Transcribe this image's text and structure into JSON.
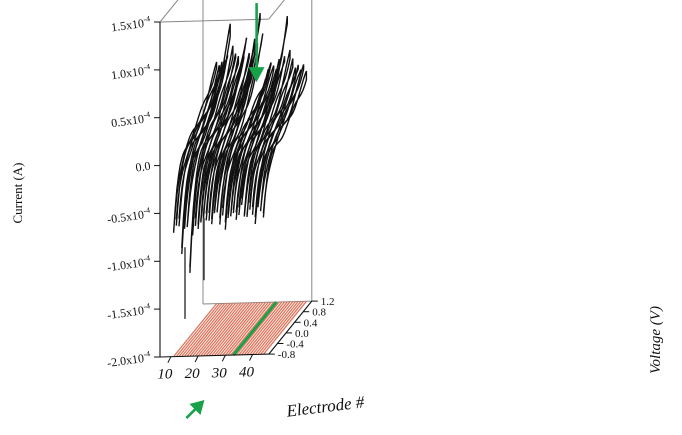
{
  "chart_data": {
    "type": "line",
    "title": "",
    "projection": "3d-waterfall",
    "ylabel": "Current (A)",
    "xlabel": "Electrode #",
    "zlabel": "Voltage (V)",
    "current_ticks": [
      "1.5x10",
      "1.0x10",
      "0.5x10",
      "0.0",
      "-0.5x10",
      "-1.0x10",
      "-1.5x10",
      "-2.0x10"
    ],
    "current_tick_exp": "-4",
    "current_values": [
      0.00015,
      0.0001,
      5e-05,
      0.0,
      -5e-05,
      -0.0001,
      -0.00015,
      -0.0002
    ],
    "ylim": [
      -0.0002,
      0.00015
    ],
    "electrode_ticks": [
      "10",
      "20",
      "30",
      "40"
    ],
    "electrode_values": [
      10,
      20,
      30,
      40
    ],
    "electrode_range": [
      6,
      46
    ],
    "voltage_ticks": [
      "1.2",
      "0.8",
      "0.4",
      "0.0",
      "-0.4",
      "-0.8"
    ],
    "voltage_values": [
      1.2,
      0.8,
      0.4,
      0.0,
      -0.4,
      -0.8
    ],
    "voltage_range": [
      -0.8,
      1.2
    ],
    "electrodes": [
      11,
      12,
      13,
      14,
      15,
      16,
      17,
      18,
      19,
      20,
      21,
      22,
      23,
      24,
      25,
      26,
      27,
      28,
      29,
      30,
      31,
      32,
      33,
      34,
      35,
      36,
      37,
      38,
      39,
      40,
      41,
      42,
      43,
      44
    ],
    "peak_current": [
      5e-05,
      4.5e-05,
      5e-05,
      5.5e-05,
      6e-05,
      9e-05,
      6.5e-05,
      6e-05,
      5.5e-05,
      5e-05,
      6e-05,
      8e-05,
      6e-05,
      5.5e-05,
      7.5e-05,
      7e-05,
      0.000105,
      8.5e-05,
      3e-05,
      4e-05,
      5e-05,
      4.5e-05,
      4e-05,
      5e-05,
      6e-05,
      5.5e-05,
      0.0001,
      6e-05,
      5e-05,
      4e-05,
      4.5e-05,
      4e-05,
      4.5e-05,
      3.5e-05
    ],
    "base_current": [
      -7e-05,
      -6e-05,
      -6e-05,
      -9e-05,
      -6.5e-05,
      -6.5e-05,
      -0.00011,
      -7e-05,
      -6e-05,
      -6.5e-05,
      -6e-05,
      -5.5e-05,
      -5.5e-05,
      -5.5e-05,
      -6e-05,
      -5e-05,
      -5e-05,
      -6e-05,
      -5e-05,
      -6.5e-05,
      -5.5e-05,
      -5.5e-05,
      -5e-05,
      -5.5e-05,
      -5e-05,
      -4e-05,
      -5.5e-05,
      -5.5e-05,
      -4.5e-05,
      -5e-05,
      -6e-05,
      -4.5e-05,
      -5e-05,
      -5.5e-05
    ],
    "deep_spikes": [
      {
        "electrode": 14,
        "current": -0.000165
      },
      {
        "electrode": 21,
        "current": -0.000125
      }
    ],
    "highlighted_electrode": 33,
    "colors": {
      "traces": "#111111",
      "floor_lines": "#e0735a",
      "highlight": "#17a24a",
      "box": "#888888"
    }
  }
}
